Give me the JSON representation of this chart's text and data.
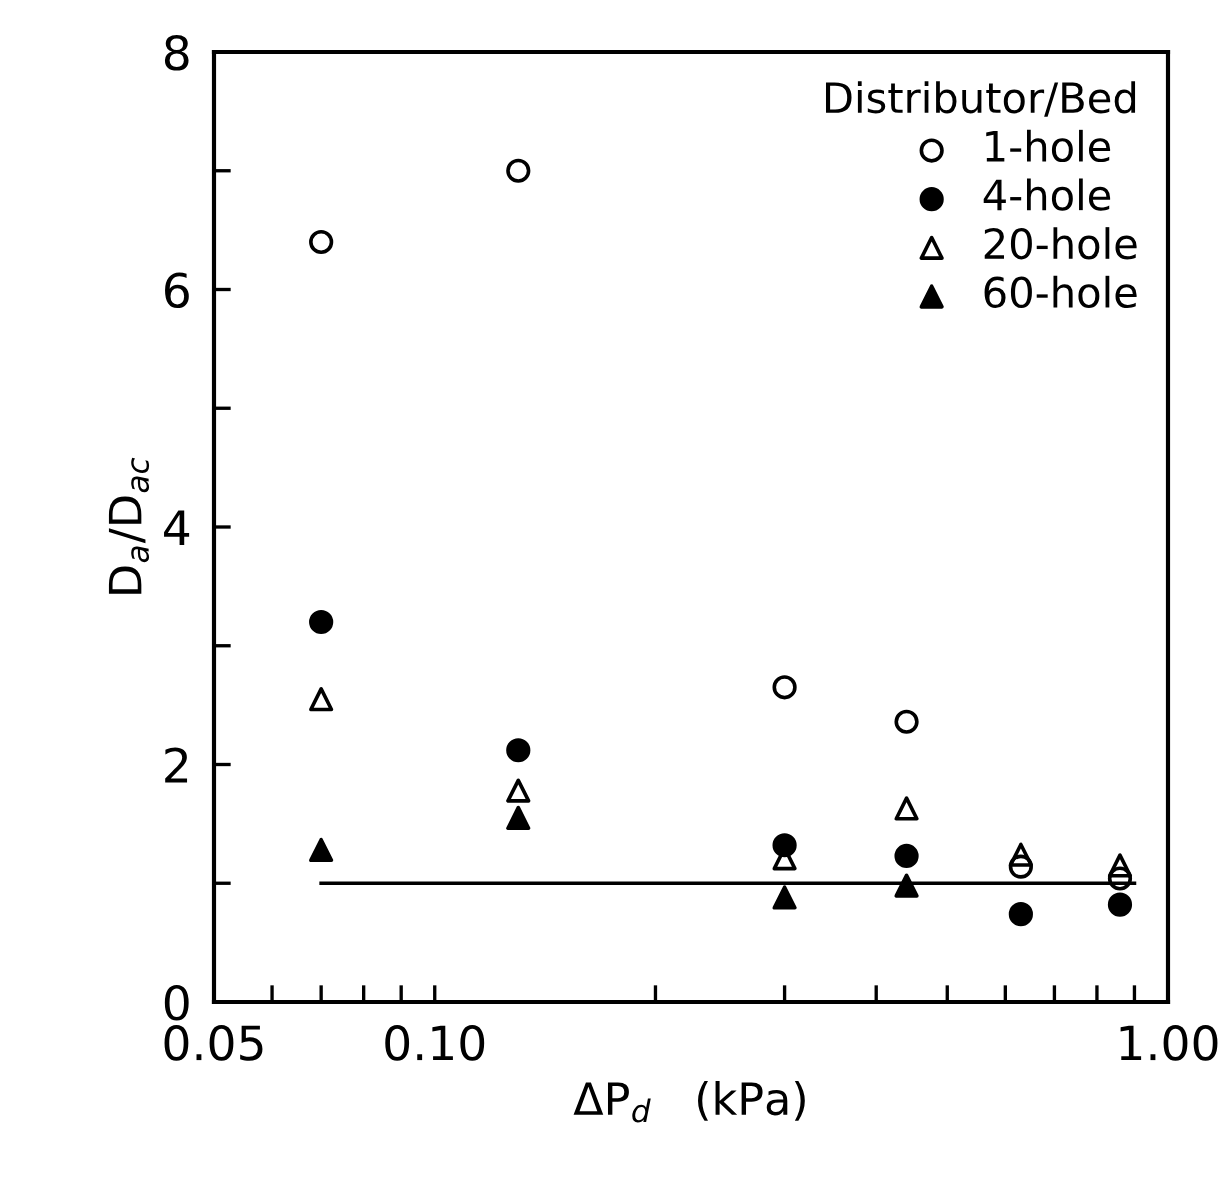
{
  "chart_data": {
    "type": "scatter",
    "xlabel": "ΔP$_{d}$   (kPa)",
    "ylabel": "D$_{a}$/D$_{ac}$",
    "legend_title": "Distributor/Bed",
    "log": "x",
    "xlim": [
      0.05,
      1.0
    ],
    "ylim": [
      0,
      8
    ],
    "xticks": [
      {
        "value": 0.05,
        "label": "0.05"
      },
      {
        "value": 0.06,
        "label": null
      },
      {
        "value": 0.07,
        "label": null
      },
      {
        "value": 0.08,
        "label": null
      },
      {
        "value": 0.09,
        "label": null
      },
      {
        "value": 0.1,
        "label": "0.10"
      },
      {
        "value": 0.2,
        "label": null
      },
      {
        "value": 0.3,
        "label": null
      },
      {
        "value": 0.4,
        "label": null
      },
      {
        "value": 0.5,
        "label": null
      },
      {
        "value": 0.6,
        "label": null
      },
      {
        "value": 0.7,
        "label": null
      },
      {
        "value": 0.8,
        "label": null
      },
      {
        "value": 0.9,
        "label": null
      },
      {
        "value": 1.0,
        "label": "1.00"
      }
    ],
    "yticks": [
      0,
      {
        "value": 1,
        "label": null
      },
      2,
      {
        "value": 3,
        "label": null
      },
      4,
      {
        "value": 5,
        "label": null
      },
      6,
      {
        "value": 7,
        "label": null
      },
      8
    ],
    "grid": false,
    "legend": "top right",
    "x": [
      0.07,
      0.13,
      0.3,
      0.44,
      0.63,
      0.86
    ],
    "series": [
      {
        "name": "1-hole",
        "color": "#000000",
        "marker": "circle",
        "values": [
          6.4,
          7.0,
          2.65,
          2.36,
          1.14,
          1.04
        ]
      },
      {
        "name": "4-hole",
        "color": "#000000",
        "marker": "circle",
        "values": [
          3.2,
          2.12,
          1.32,
          1.23,
          0.74,
          0.82
        ]
      },
      {
        "name": "20-hole",
        "color": "#000000",
        "marker": "triangle",
        "values": [
          2.55,
          1.78,
          1.21,
          1.63,
          1.24,
          1.15
        ]
      },
      {
        "name": "60-hole",
        "color": "#000000",
        "marker": "triangle",
        "values": [
          1.28,
          1.55,
          0.88,
          0.98,
          null,
          null
        ]
      },
      {
        "type": "line",
        "color": "#000000",
        "x": [
          0.07,
          0.9
        ],
        "values": [
          1.0,
          1.0
        ],
        "line_style": "solid",
        "marker": "none"
      }
    ]
  }
}
